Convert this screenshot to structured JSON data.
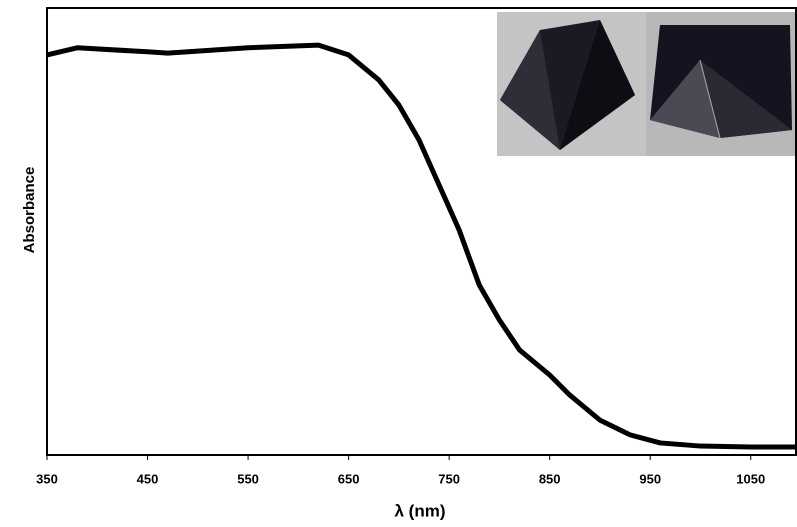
{
  "chart_data": {
    "type": "line",
    "x_label": "λ (nm)",
    "y_label": "Absorbance",
    "x": [
      350,
      380,
      450,
      470,
      550,
      620,
      650,
      680,
      700,
      720,
      740,
      760,
      780,
      800,
      820,
      850,
      870,
      900,
      930,
      960,
      1000,
      1050,
      1095
    ],
    "values": [
      0.895,
      0.911,
      0.902,
      0.899,
      0.911,
      0.917,
      0.895,
      0.839,
      0.783,
      0.705,
      0.604,
      0.503,
      0.38,
      0.302,
      0.235,
      0.179,
      0.134,
      0.078,
      0.045,
      0.027,
      0.02,
      0.018,
      0.018
    ],
    "color": "#000000",
    "xlim": [
      350,
      1095
    ],
    "ylim": [
      0,
      1
    ],
    "xticks": [
      350,
      450,
      550,
      650,
      750,
      850,
      950,
      1050
    ],
    "grid": false
  }
}
